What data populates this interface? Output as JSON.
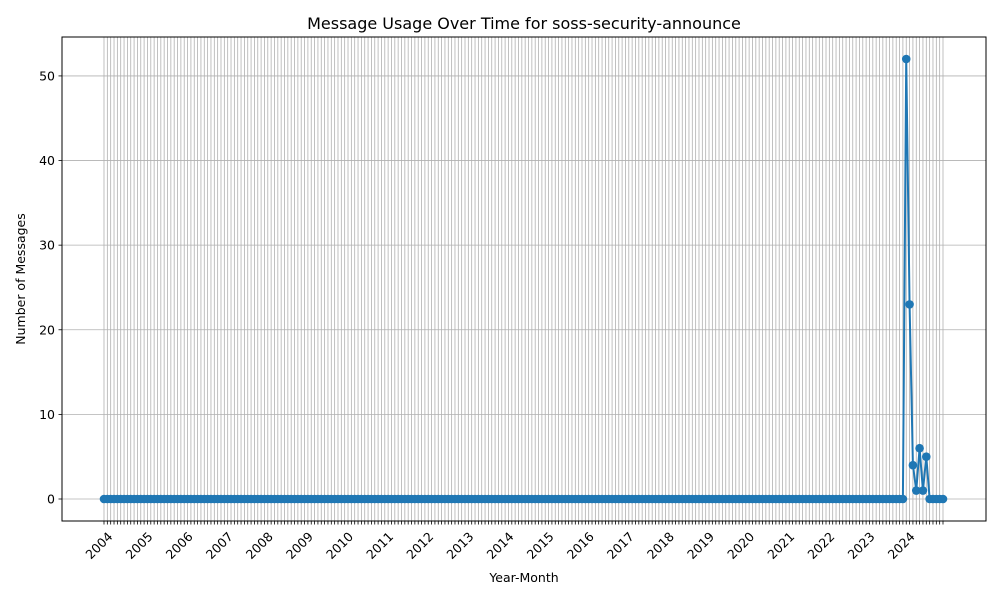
{
  "chart_data": {
    "type": "line",
    "title": "Message Usage Over Time for soss-security-announce",
    "xlabel": "Year-Month",
    "ylabel": "Number of Messages",
    "x_start": "2004-01",
    "x_end": "2024-12",
    "x_tick_labels": [
      "2004",
      "2005",
      "2006",
      "2007",
      "2008",
      "2009",
      "2010",
      "2011",
      "2012",
      "2013",
      "2014",
      "2015",
      "2016",
      "2017",
      "2018",
      "2019",
      "2020",
      "2021",
      "2022",
      "2023",
      "2024"
    ],
    "y_ticks": [
      0,
      10,
      20,
      30,
      40,
      50
    ],
    "ylim": [
      -2.6,
      54.6
    ],
    "grid": true,
    "series": [
      {
        "color": "#1f77b4",
        "marker": "circle",
        "baseline": 0,
        "values_2024": [
          {
            "x": "2024-01",
            "y": 52
          },
          {
            "x": "2024-02",
            "y": 23
          },
          {
            "x": "2024-03",
            "y": 4
          },
          {
            "x": "2024-04",
            "y": 1
          },
          {
            "x": "2024-05",
            "y": 6
          },
          {
            "x": "2024-06",
            "y": 1
          },
          {
            "x": "2024-07",
            "y": 5
          },
          {
            "x": "2024-08",
            "y": 0
          },
          {
            "x": "2024-09",
            "y": 0
          },
          {
            "x": "2024-10",
            "y": 0
          },
          {
            "x": "2024-11",
            "y": 0
          },
          {
            "x": "2024-12",
            "y": 0
          }
        ]
      }
    ]
  },
  "colors": {
    "line": "#1f77b4",
    "grid": "#b0b0b0",
    "axes": "#000000"
  }
}
